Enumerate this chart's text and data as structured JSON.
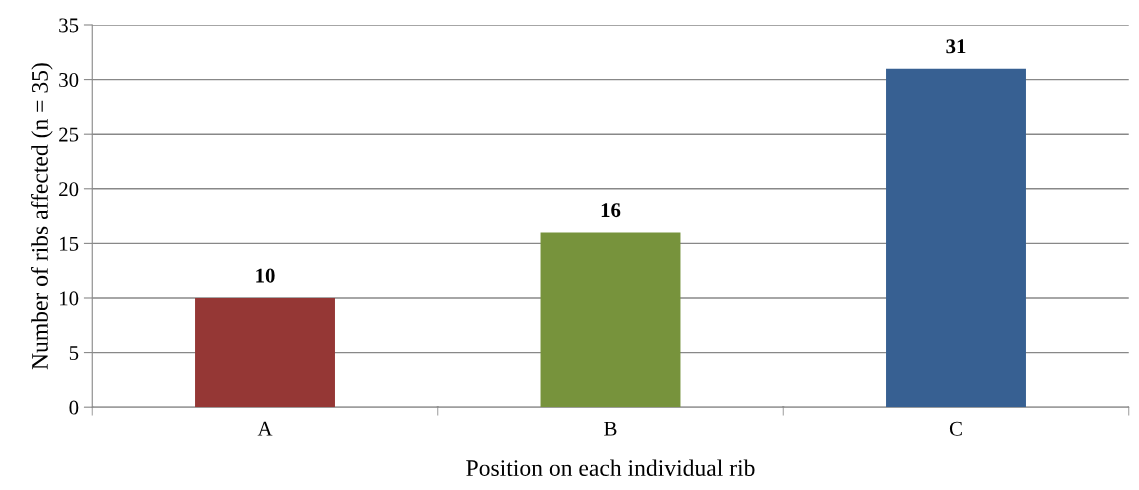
{
  "chart_data": {
    "type": "bar",
    "xlabel": "Position on each individual rib",
    "ylabel": "Number of ribs affected (n = 35)",
    "categories": [
      "A",
      "B",
      "C"
    ],
    "values": [
      10,
      16,
      31
    ],
    "colors": [
      "#953735",
      "#77933c",
      "#376092"
    ],
    "ylim": [
      0,
      35
    ],
    "yticks": [
      0,
      5,
      10,
      15,
      20,
      25,
      30,
      35
    ],
    "grid": "y",
    "data_labels": true
  }
}
